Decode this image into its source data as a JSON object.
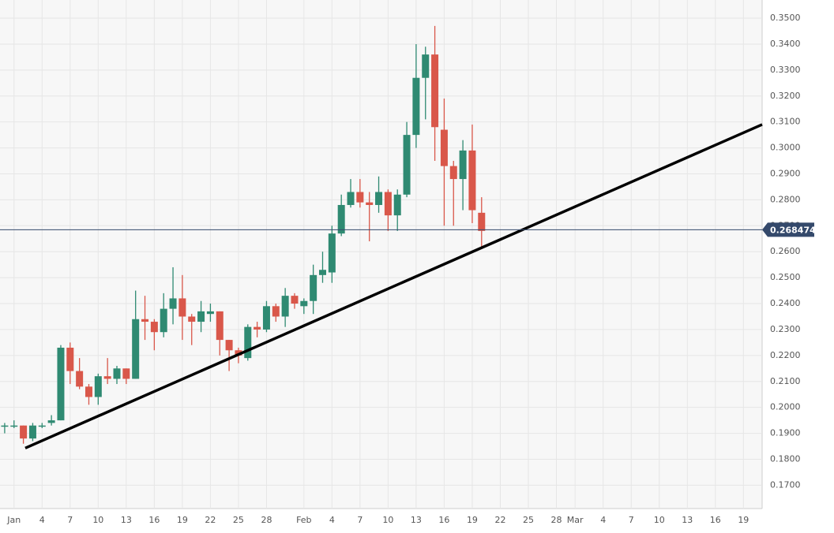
{
  "chart_data": {
    "type": "candlestick",
    "x": [
      0,
      1,
      2,
      3,
      4,
      5,
      6,
      7,
      8,
      9,
      10,
      11,
      12,
      13,
      14,
      15,
      16,
      17,
      18,
      19,
      20,
      21,
      22,
      23,
      24,
      25,
      26,
      27,
      28,
      29,
      30,
      31,
      32,
      33,
      34,
      35,
      36,
      37,
      38,
      39,
      40,
      41,
      42,
      43,
      44,
      45,
      46,
      47,
      48,
      49,
      50,
      51
    ],
    "open": [
      0.193,
      0.193,
      0.193,
      0.188,
      0.193,
      0.194,
      0.195,
      0.223,
      0.214,
      0.208,
      0.204,
      0.212,
      0.211,
      0.215,
      0.211,
      0.234,
      0.233,
      0.229,
      0.238,
      0.242,
      0.235,
      0.233,
      0.236,
      0.237,
      0.226,
      0.222,
      0.219,
      0.231,
      0.23,
      0.239,
      0.235,
      0.243,
      0.239,
      0.241,
      0.251,
      0.252,
      0.267,
      0.278,
      0.283,
      0.279,
      0.278,
      0.283,
      0.274,
      0.282,
      0.305,
      0.327,
      0.336,
      0.307,
      0.293,
      0.288,
      0.299,
      0.275
    ],
    "high": [
      0.194,
      0.195,
      0.193,
      0.194,
      0.194,
      0.197,
      0.224,
      0.225,
      0.219,
      0.209,
      0.213,
      0.219,
      0.216,
      0.215,
      0.245,
      0.243,
      0.234,
      0.244,
      0.254,
      0.251,
      0.236,
      0.241,
      0.24,
      0.237,
      0.226,
      0.223,
      0.232,
      0.233,
      0.241,
      0.24,
      0.246,
      0.244,
      0.242,
      0.255,
      0.26,
      0.27,
      0.282,
      0.288,
      0.288,
      0.283,
      0.289,
      0.284,
      0.284,
      0.31,
      0.34,
      0.339,
      0.347,
      0.319,
      0.295,
      0.303,
      0.309,
      0.281
    ],
    "low": [
      0.19,
      0.192,
      0.186,
      0.187,
      0.192,
      0.193,
      0.195,
      0.209,
      0.207,
      0.201,
      0.201,
      0.209,
      0.209,
      0.209,
      0.211,
      0.226,
      0.222,
      0.227,
      0.232,
      0.226,
      0.224,
      0.229,
      0.233,
      0.22,
      0.214,
      0.217,
      0.218,
      0.227,
      0.229,
      0.233,
      0.231,
      0.238,
      0.236,
      0.236,
      0.248,
      0.248,
      0.266,
      0.277,
      0.277,
      0.264,
      0.275,
      0.268,
      0.268,
      0.281,
      0.3,
      0.311,
      0.295,
      0.27,
      0.27,
      0.276,
      0.271,
      0.262
    ],
    "close": [
      0.193,
      0.193,
      0.188,
      0.193,
      0.193,
      0.195,
      0.223,
      0.214,
      0.208,
      0.204,
      0.212,
      0.211,
      0.215,
      0.211,
      0.234,
      0.233,
      0.229,
      0.238,
      0.242,
      0.235,
      0.233,
      0.237,
      0.237,
      0.226,
      0.222,
      0.22,
      0.231,
      0.23,
      0.239,
      0.235,
      0.243,
      0.24,
      0.241,
      0.251,
      0.253,
      0.267,
      0.278,
      0.283,
      0.279,
      0.278,
      0.283,
      0.274,
      0.282,
      0.305,
      0.327,
      0.336,
      0.308,
      0.293,
      0.288,
      0.299,
      0.276,
      0.268
    ],
    "up_color": "#2f8a72",
    "down_color": "#d9574a",
    "xlim": [
      -0.5,
      81
    ],
    "xticks": [
      {
        "value": 1,
        "label": "Jan"
      },
      4,
      7,
      10,
      13,
      16,
      19,
      22,
      25,
      28,
      {
        "value": 32,
        "label": "Feb"
      },
      {
        "value": 35,
        "label": "4"
      },
      {
        "value": 38,
        "label": "7"
      },
      {
        "value": 41,
        "label": "10"
      },
      {
        "value": 44,
        "label": "13"
      },
      {
        "value": 47,
        "label": "16"
      },
      {
        "value": 50,
        "label": "19"
      },
      {
        "value": 53,
        "label": "22"
      },
      {
        "value": 56,
        "label": "25"
      },
      {
        "value": 59,
        "label": "28"
      },
      {
        "value": 61,
        "label": "Mar"
      },
      {
        "value": 64,
        "label": "4"
      },
      {
        "value": 67,
        "label": "7"
      },
      {
        "value": 70,
        "label": "10"
      },
      {
        "value": 73,
        "label": "13"
      },
      {
        "value": 76,
        "label": "16"
      },
      {
        "value": 79,
        "label": "19"
      }
    ],
    "ylim": [
      0.161,
      0.357
    ],
    "yticks": [
      {
        "value": 0.17,
        "label": "0.1700"
      },
      {
        "value": 0.18,
        "label": "0.1800"
      },
      {
        "value": 0.19,
        "label": "0.1900"
      },
      {
        "value": 0.2,
        "label": "0.2000"
      },
      {
        "value": 0.21,
        "label": "0.2100"
      },
      {
        "value": 0.22,
        "label": "0.2200"
      },
      {
        "value": 0.23,
        "label": "0.2300"
      },
      {
        "value": 0.24,
        "label": "0.2400"
      },
      {
        "value": 0.25,
        "label": "0.2500"
      },
      {
        "value": 0.26,
        "label": "0.2600"
      },
      {
        "value": 0.27,
        "label": "0.2700"
      },
      {
        "value": 0.28,
        "label": "0.2800"
      },
      {
        "value": 0.29,
        "label": "0.2900"
      },
      {
        "value": 0.3,
        "label": "0.3000"
      },
      {
        "value": 0.31,
        "label": "0.3100"
      },
      {
        "value": 0.32,
        "label": "0.3200"
      },
      {
        "value": 0.33,
        "label": "0.3300"
      },
      {
        "value": 0.34,
        "label": "0.3400"
      },
      {
        "value": 0.35,
        "label": "0.3500"
      }
    ],
    "grid": true,
    "last_price": 0.268474,
    "last_price_color": "#34496b",
    "trendline": {
      "x": [
        2.2,
        81
      ],
      "y": [
        0.1843,
        0.309
      ],
      "color": "#000000"
    }
  }
}
